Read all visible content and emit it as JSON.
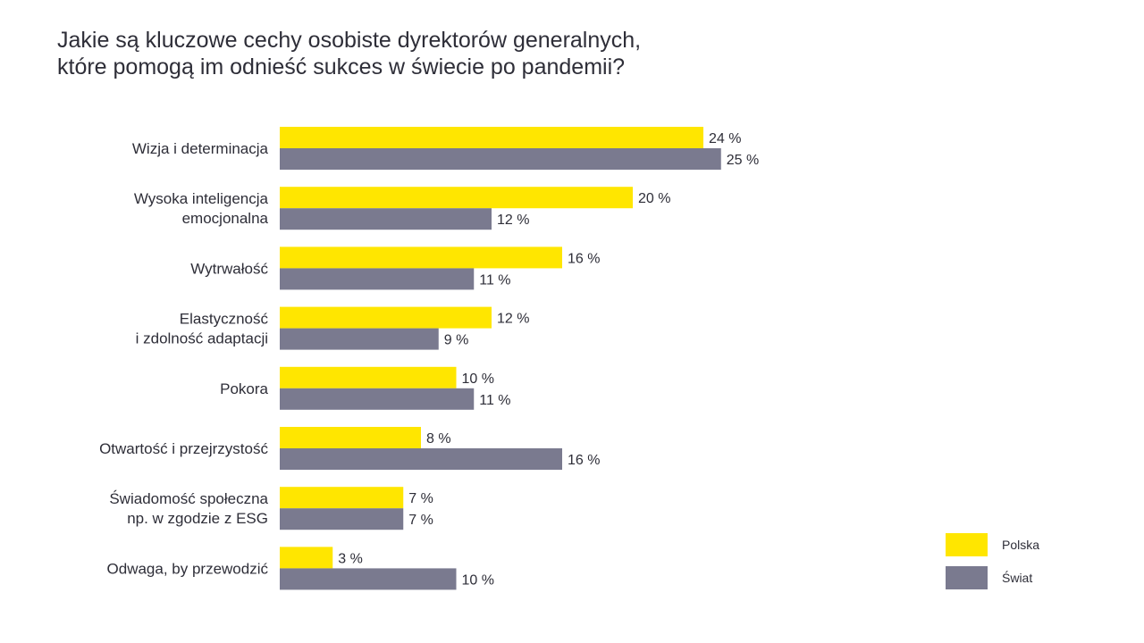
{
  "title": {
    "line1": "Jakie są kluczowe cechy osobiste dyrektorów generalnych,",
    "line2": "które pomogą im odnieść sukces w świecie po pandemii?"
  },
  "colors": {
    "polska": "#ffe600",
    "swiat": "#7a7a8f",
    "text": "#2e2e38"
  },
  "chart_data": {
    "type": "bar",
    "orientation": "horizontal",
    "title": "Jakie są kluczowe cechy osobiste dyrektorów generalnych, które pomogą im odnieść sukces w świecie po pandemii?",
    "categories": [
      [
        "Wizja i determinacja"
      ],
      [
        "Wysoka inteligencja",
        "emocjonalna"
      ],
      [
        "Wytrwałość"
      ],
      [
        "Elastyczność",
        "i zdolność adaptacji"
      ],
      [
        "Pokora"
      ],
      [
        "Otwartość i przejrzystość"
      ],
      [
        "Świadomość społeczna",
        "np. w zgodzie z ESG"
      ],
      [
        "Odwaga, by przewodzić"
      ]
    ],
    "series": [
      {
        "name": "Polska",
        "values": [
          24,
          20,
          16,
          12,
          10,
          8,
          7,
          3
        ]
      },
      {
        "name": "Świat",
        "values": [
          25,
          12,
          11,
          9,
          11,
          16,
          7,
          10
        ]
      }
    ],
    "value_suffix": " %",
    "xlim": [
      0,
      25
    ],
    "grid": false,
    "legend_position": "bottom-right"
  }
}
